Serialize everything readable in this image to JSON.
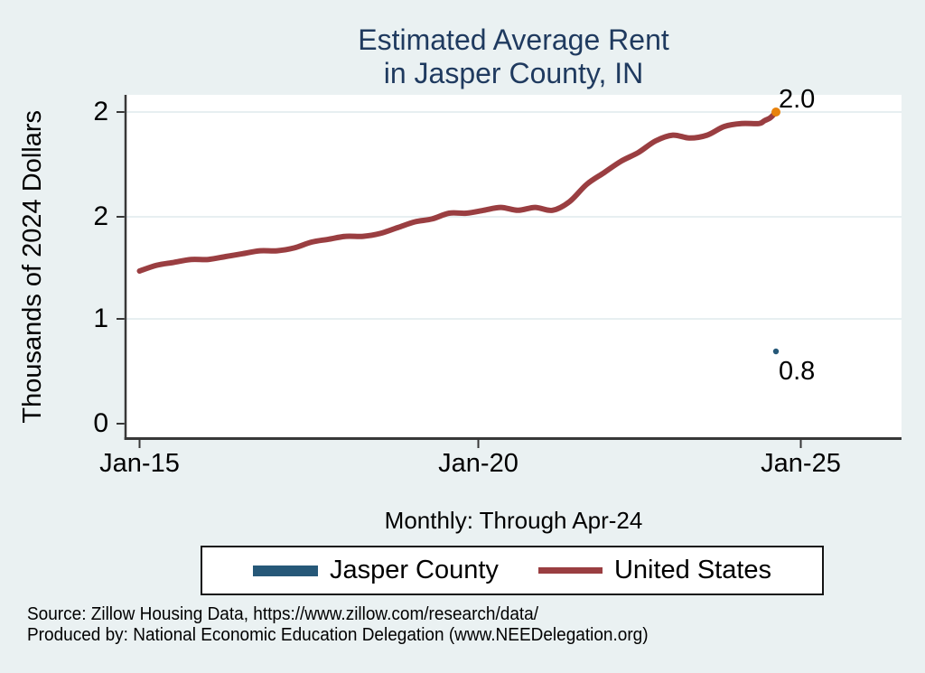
{
  "chart_data": {
    "type": "line",
    "title_lines": [
      "Estimated Average Rent",
      "in Jasper County, IN"
    ],
    "subtitle": "Monthly: Through Apr-24",
    "ylabel": "Thousands of 2024 Dollars",
    "y_tick_labels": [
      "0",
      "1",
      "2",
      "2"
    ],
    "x_tick_labels": [
      "Jan-15",
      "Jan-20",
      "Jan-25"
    ],
    "grid": true,
    "legend_position": "bottom",
    "colors": {
      "background": "#eaf1f2",
      "plot_background": "#ffffff",
      "title": "#1f3a5f",
      "gridline": "#e7eff1",
      "axis": "#383838",
      "united_states_line": "#9a3e41",
      "jasper_county": "#265878",
      "end_marker": "#e8820c"
    },
    "series": [
      {
        "name": "Jasper County",
        "style": "point",
        "color": "#265878",
        "dates": [
          "2024-04"
        ],
        "values": [
          0.8
        ],
        "end_label": "0.8"
      },
      {
        "name": "United States",
        "style": "line",
        "color": "#9a3e41",
        "end_label": "2.0",
        "end_marker_color": "#e8820c",
        "dates": [
          "2015-01",
          "2015-04",
          "2015-07",
          "2015-10",
          "2016-01",
          "2016-04",
          "2016-07",
          "2016-10",
          "2017-01",
          "2017-04",
          "2017-07",
          "2017-10",
          "2018-01",
          "2018-04",
          "2018-07",
          "2018-10",
          "2019-01",
          "2019-04",
          "2019-07",
          "2019-10",
          "2020-01",
          "2020-04",
          "2020-07",
          "2020-10",
          "2021-01",
          "2021-04",
          "2021-07",
          "2021-10",
          "2022-01",
          "2022-04",
          "2022-07",
          "2022-10",
          "2023-01",
          "2023-04",
          "2023-07",
          "2023-10",
          "2024-01",
          "2024-02",
          "2024-03",
          "2024-04"
        ],
        "values": [
          1.45,
          1.47,
          1.48,
          1.49,
          1.49,
          1.5,
          1.51,
          1.52,
          1.52,
          1.53,
          1.55,
          1.56,
          1.57,
          1.57,
          1.58,
          1.6,
          1.62,
          1.63,
          1.65,
          1.65,
          1.66,
          1.67,
          1.66,
          1.67,
          1.66,
          1.69,
          1.75,
          1.79,
          1.83,
          1.86,
          1.9,
          1.92,
          1.91,
          1.92,
          1.95,
          1.96,
          1.96,
          1.97,
          1.98,
          2.0
        ]
      }
    ]
  },
  "footer": {
    "line1": "Source: Zillow Housing Data, https://www.zillow.com/research/data/",
    "line2": "Produced by: National Economic Education Delegation (www.NEEDelegation.org)"
  }
}
